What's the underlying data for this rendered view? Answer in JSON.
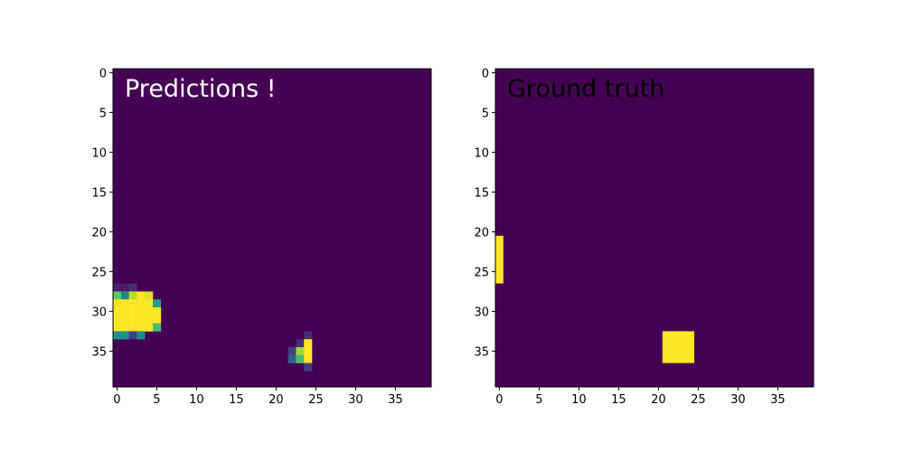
{
  "chart_data": [
    {
      "type": "heatmap",
      "title": "Predictions !",
      "title_color": "#ffffff",
      "grid_size": [
        40,
        40
      ],
      "xlim": [
        -0.5,
        39.5
      ],
      "ylim": [
        39.5,
        -0.5
      ],
      "x_ticks": [
        0,
        5,
        10,
        15,
        20,
        25,
        30,
        35
      ],
      "y_ticks": [
        0,
        5,
        10,
        15,
        20,
        25,
        30,
        35
      ],
      "grid": false,
      "colormap": "viridis",
      "background_value": 0,
      "cells": [
        {
          "x": 0,
          "y": 27,
          "v": 0.1
        },
        {
          "x": 1,
          "y": 27,
          "v": 0.1
        },
        {
          "x": 2,
          "y": 27,
          "v": 0.15
        },
        {
          "x": 0,
          "y": 28,
          "v": 0.75
        },
        {
          "x": 1,
          "y": 28,
          "v": 0.45
        },
        {
          "x": 2,
          "y": 28,
          "v": 0.9
        },
        {
          "x": 3,
          "y": 28,
          "v": 1.0
        },
        {
          "x": 4,
          "y": 28,
          "v": 0.95
        },
        {
          "x": 0,
          "y": 29,
          "v": 0.98
        },
        {
          "x": 1,
          "y": 29,
          "v": 1.0
        },
        {
          "x": 2,
          "y": 29,
          "v": 1.0
        },
        {
          "x": 3,
          "y": 29,
          "v": 1.0
        },
        {
          "x": 4,
          "y": 29,
          "v": 1.0
        },
        {
          "x": 5,
          "y": 29,
          "v": 0.55
        },
        {
          "x": 0,
          "y": 30,
          "v": 1.0
        },
        {
          "x": 1,
          "y": 30,
          "v": 1.0
        },
        {
          "x": 2,
          "y": 30,
          "v": 1.0
        },
        {
          "x": 3,
          "y": 30,
          "v": 1.0
        },
        {
          "x": 4,
          "y": 30,
          "v": 1.0
        },
        {
          "x": 5,
          "y": 30,
          "v": 1.0
        },
        {
          "x": 0,
          "y": 31,
          "v": 1.0
        },
        {
          "x": 1,
          "y": 31,
          "v": 1.0
        },
        {
          "x": 2,
          "y": 31,
          "v": 1.0
        },
        {
          "x": 3,
          "y": 31,
          "v": 1.0
        },
        {
          "x": 4,
          "y": 31,
          "v": 1.0
        },
        {
          "x": 5,
          "y": 31,
          "v": 1.0
        },
        {
          "x": 0,
          "y": 32,
          "v": 1.0
        },
        {
          "x": 1,
          "y": 32,
          "v": 1.0
        },
        {
          "x": 2,
          "y": 32,
          "v": 1.0
        },
        {
          "x": 3,
          "y": 32,
          "v": 1.0
        },
        {
          "x": 4,
          "y": 32,
          "v": 1.0
        },
        {
          "x": 5,
          "y": 32,
          "v": 0.7
        },
        {
          "x": 0,
          "y": 33,
          "v": 0.5
        },
        {
          "x": 1,
          "y": 33,
          "v": 0.5
        },
        {
          "x": 2,
          "y": 33,
          "v": 0.2
        },
        {
          "x": 3,
          "y": 33,
          "v": 0.45
        },
        {
          "x": 24,
          "y": 33,
          "v": 0.15
        },
        {
          "x": 23,
          "y": 34,
          "v": 0.15
        },
        {
          "x": 24,
          "y": 34,
          "v": 1.0
        },
        {
          "x": 22,
          "y": 35,
          "v": 0.2
        },
        {
          "x": 23,
          "y": 35,
          "v": 0.85
        },
        {
          "x": 24,
          "y": 35,
          "v": 1.0
        },
        {
          "x": 22,
          "y": 36,
          "v": 0.3
        },
        {
          "x": 23,
          "y": 36,
          "v": 0.7
        },
        {
          "x": 24,
          "y": 36,
          "v": 1.0
        },
        {
          "x": 24,
          "y": 37,
          "v": 0.2
        }
      ]
    },
    {
      "type": "heatmap",
      "title": "Ground truth",
      "title_color": "#000000",
      "grid_size": [
        40,
        40
      ],
      "xlim": [
        -0.5,
        39.5
      ],
      "ylim": [
        39.5,
        -0.5
      ],
      "x_ticks": [
        0,
        5,
        10,
        15,
        20,
        25,
        30,
        35
      ],
      "y_ticks": [
        0,
        5,
        10,
        15,
        20,
        25,
        30,
        35
      ],
      "grid": false,
      "colormap": "viridis",
      "background_value": 0,
      "rects": [
        {
          "x0": 0,
          "x1": 0,
          "y0": 21,
          "y1": 26,
          "v": 1.0
        },
        {
          "x0": 21,
          "x1": 24,
          "y0": 33,
          "y1": 36,
          "v": 1.0
        }
      ]
    }
  ]
}
